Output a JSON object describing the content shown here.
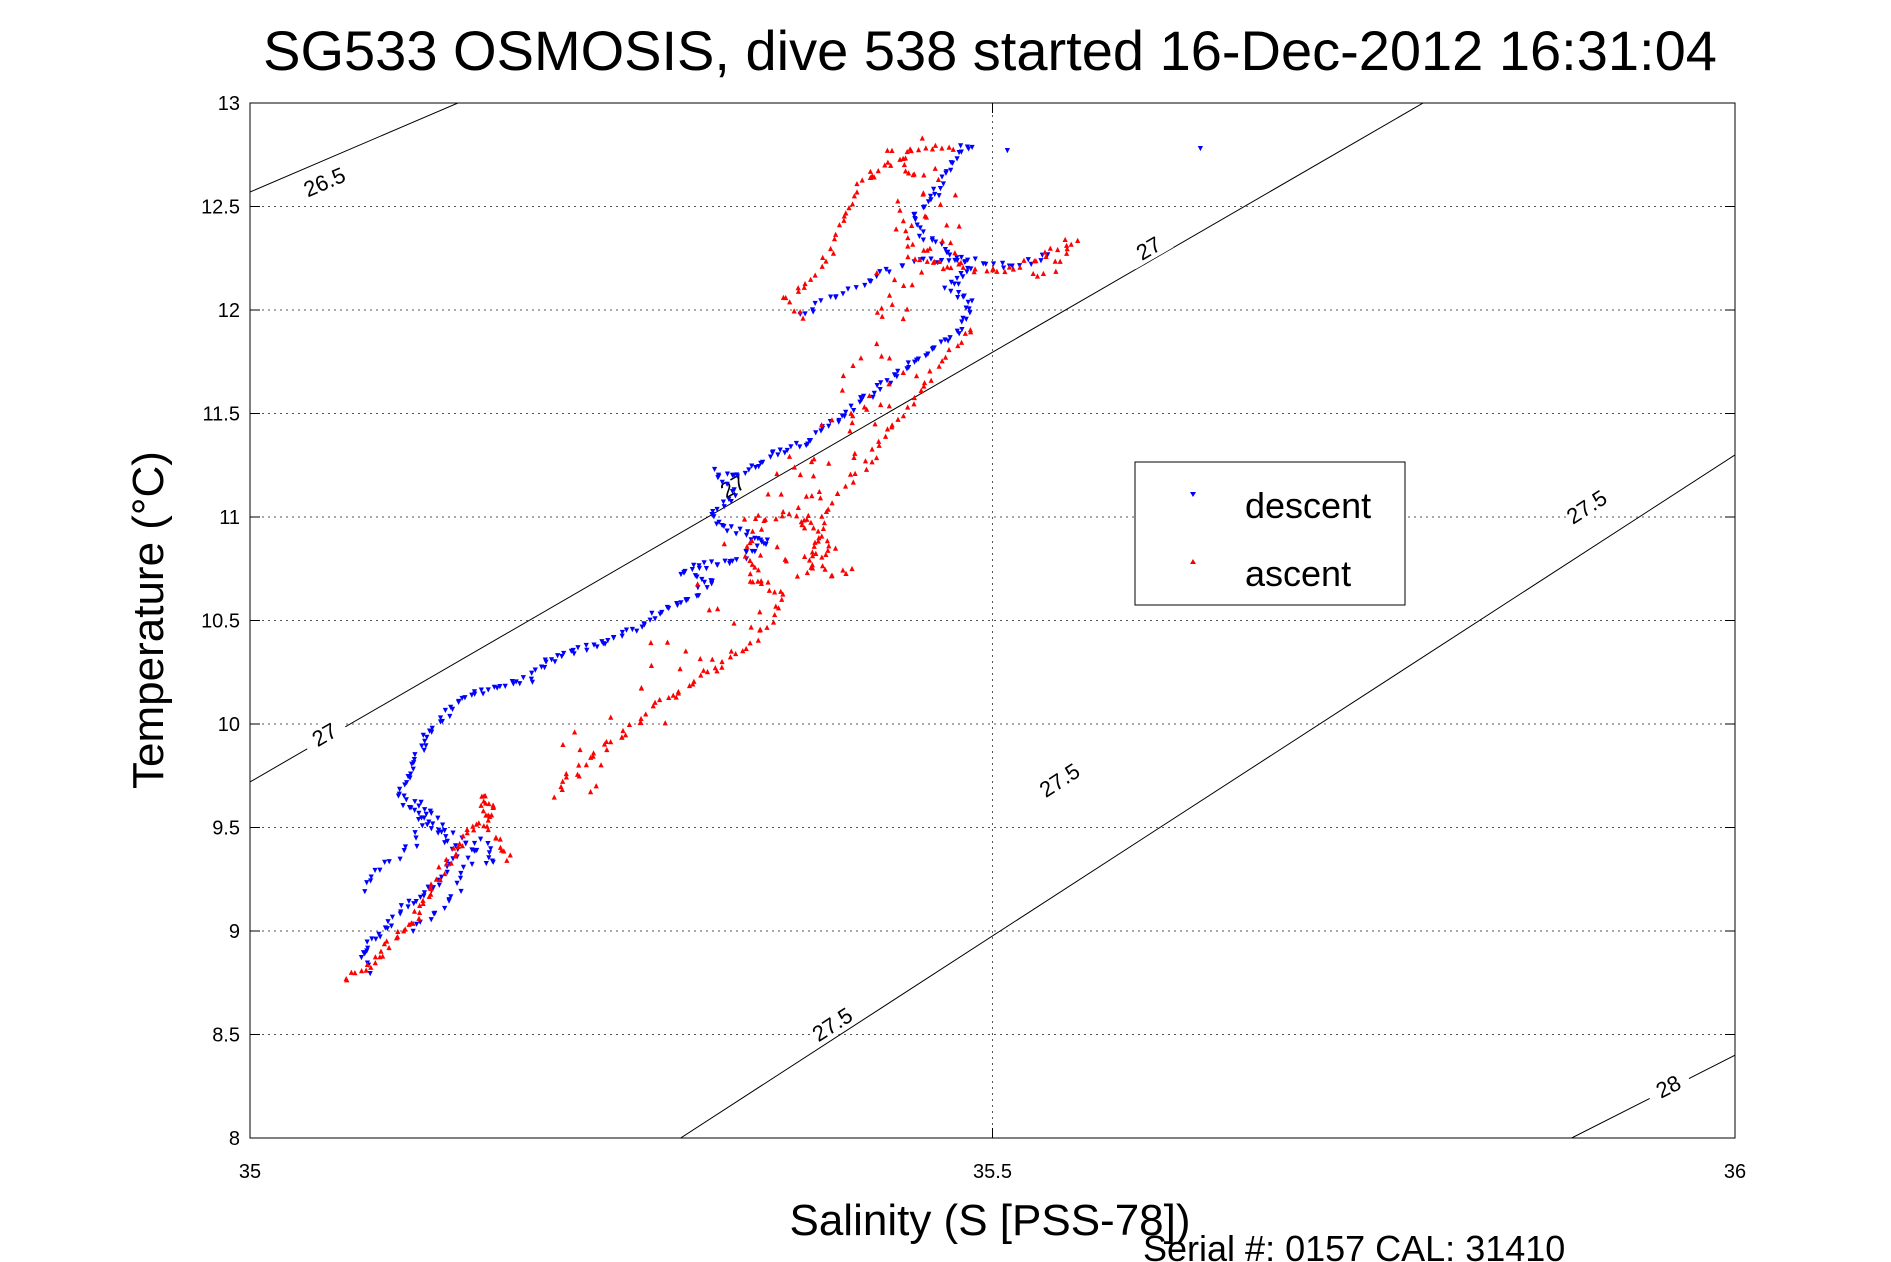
{
  "chart_data": {
    "type": "scatter",
    "title": "SG533 OSMOSIS, dive 538 started 16-Dec-2012 16:31:04",
    "xlabel": "Salinity (S [PSS-78])",
    "ylabel": "Temperature (°C)",
    "xlim": [
      35,
      36
    ],
    "ylim": [
      8,
      13
    ],
    "xticks": [
      35,
      35.5,
      36
    ],
    "xtick_labels": [
      "35",
      "35.5",
      "36"
    ],
    "yticks": [
      8,
      8.5,
      9,
      9.5,
      10,
      10.5,
      11,
      11.5,
      12,
      12.5,
      13
    ],
    "ytick_labels": [
      "8",
      "8.5",
      "9",
      "9.5",
      "10",
      "10.5",
      "11",
      "11.5",
      "12",
      "12.5",
      "13"
    ],
    "grid": true,
    "legend_position": "right",
    "footer": "Serial #: 0157  CAL: 31410",
    "density_contours": [
      {
        "label": "26.5",
        "points": [
          [
            35.0,
            12.57
          ],
          [
            35.14,
            13.0
          ]
        ]
      },
      {
        "label": "27",
        "points": [
          [
            35.0,
            9.72
          ],
          [
            35.79,
            13.0
          ]
        ]
      },
      {
        "label": "27.5",
        "points": [
          [
            35.29,
            8.0
          ],
          [
            36.0,
            11.3
          ]
        ]
      },
      {
        "label": "28",
        "points": [
          [
            35.89,
            8.0
          ],
          [
            36.0,
            8.4
          ]
        ]
      }
    ],
    "contour_labels": [
      {
        "text": "26.5",
        "x": 35.05,
        "y": 12.62
      },
      {
        "text": "27",
        "x": 35.05,
        "y": 9.95
      },
      {
        "text": "27",
        "x": 35.325,
        "y": 11.15
      },
      {
        "text": "27",
        "x": 35.605,
        "y": 12.3
      },
      {
        "text": "27.5",
        "x": 35.392,
        "y": 8.55
      },
      {
        "text": "27.5",
        "x": 35.545,
        "y": 9.73
      },
      {
        "text": "27.5",
        "x": 35.9,
        "y": 11.05
      },
      {
        "text": "28",
        "x": 35.955,
        "y": 8.25
      }
    ],
    "series": [
      {
        "name": "descent",
        "color": "#0000ff",
        "marker": "triangle-down",
        "path": [
          [
            35.08,
            8.8
          ],
          [
            35.075,
            8.9
          ],
          [
            35.09,
            9.0
          ],
          [
            35.1,
            9.1
          ],
          [
            35.125,
            9.22
          ],
          [
            35.14,
            9.38
          ],
          [
            35.12,
            9.52
          ],
          [
            35.1,
            9.65
          ],
          [
            35.11,
            9.8
          ],
          [
            35.12,
            9.95
          ],
          [
            35.13,
            10.03
          ],
          [
            35.15,
            10.15
          ],
          [
            35.19,
            10.22
          ],
          [
            35.2,
            10.3
          ],
          [
            35.24,
            10.4
          ],
          [
            35.26,
            10.46
          ],
          [
            35.28,
            10.55
          ],
          [
            35.3,
            10.62
          ],
          [
            35.31,
            10.68
          ],
          [
            35.29,
            10.74
          ],
          [
            35.33,
            10.8
          ],
          [
            35.35,
            10.88
          ],
          [
            35.32,
            10.95
          ],
          [
            35.31,
            11.0
          ],
          [
            35.325,
            11.1
          ],
          [
            35.315,
            11.22
          ],
          [
            35.33,
            11.2
          ],
          [
            35.35,
            11.3
          ],
          [
            35.38,
            11.38
          ],
          [
            35.4,
            11.5
          ],
          [
            35.42,
            11.6
          ],
          [
            35.44,
            11.72
          ],
          [
            35.47,
            11.85
          ],
          [
            35.48,
            11.95
          ],
          [
            35.485,
            12.03
          ],
          [
            35.47,
            12.1
          ],
          [
            35.485,
            12.2
          ],
          [
            35.47,
            12.28
          ],
          [
            35.455,
            12.35
          ],
          [
            35.445,
            12.45
          ],
          [
            35.46,
            12.55
          ],
          [
            35.47,
            12.65
          ],
          [
            35.475,
            12.72
          ],
          [
            35.48,
            12.79
          ],
          [
            35.49,
            12.78
          ]
        ],
        "path2": [
          [
            35.075,
            9.2
          ],
          [
            35.09,
            9.3
          ],
          [
            35.11,
            9.42
          ],
          [
            35.12,
            9.55
          ],
          [
            35.11,
            9.62
          ],
          [
            35.125,
            9.58
          ],
          [
            35.13,
            9.5
          ],
          [
            35.155,
            9.38
          ],
          [
            35.165,
            9.32
          ],
          [
            35.16,
            9.4
          ],
          [
            35.155,
            9.45
          ],
          [
            35.145,
            9.3
          ],
          [
            35.14,
            9.2
          ],
          [
            35.12,
            9.05
          ],
          [
            35.105,
            9.0
          ]
        ],
        "path3": [
          [
            35.37,
            11.97
          ],
          [
            35.39,
            12.05
          ],
          [
            35.42,
            12.15
          ],
          [
            35.44,
            12.22
          ],
          [
            35.47,
            12.25
          ],
          [
            35.5,
            12.22
          ],
          [
            35.52,
            12.2
          ],
          [
            35.53,
            12.25
          ],
          [
            35.54,
            12.28
          ]
        ],
        "outliers": [
          [
            35.51,
            12.77
          ],
          [
            35.64,
            12.78
          ]
        ]
      },
      {
        "name": "ascent",
        "color": "#ff0000",
        "marker": "triangle-up",
        "path": [
          [
            35.065,
            8.77
          ],
          [
            35.08,
            8.82
          ],
          [
            35.095,
            8.95
          ],
          [
            35.11,
            9.05
          ],
          [
            35.12,
            9.18
          ],
          [
            35.13,
            9.3
          ],
          [
            35.145,
            9.45
          ],
          [
            35.155,
            9.52
          ],
          [
            35.165,
            9.6
          ],
          [
            35.155,
            9.66
          ],
          [
            35.16,
            9.5
          ],
          [
            35.17,
            9.4
          ],
          [
            35.175,
            9.33
          ]
        ],
        "path2": [
          [
            35.205,
            9.65
          ],
          [
            35.215,
            9.75
          ],
          [
            35.23,
            9.85
          ],
          [
            35.245,
            9.92
          ],
          [
            35.26,
            10.0
          ],
          [
            35.275,
            10.1
          ],
          [
            35.29,
            10.16
          ],
          [
            35.3,
            10.22
          ],
          [
            35.32,
            10.3
          ],
          [
            35.34,
            10.42
          ],
          [
            35.35,
            10.5
          ],
          [
            35.36,
            10.62
          ],
          [
            35.34,
            10.7
          ],
          [
            35.335,
            10.8
          ],
          [
            35.34,
            10.9
          ],
          [
            35.345,
            11.0
          ],
          [
            35.37,
            11.02
          ],
          [
            35.38,
            10.95
          ],
          [
            35.395,
            10.85
          ],
          [
            35.375,
            10.8
          ],
          [
            35.39,
            10.72
          ],
          [
            35.4,
            10.74
          ],
          [
            35.405,
            10.77
          ]
        ],
        "path3": [
          [
            35.37,
            10.7
          ],
          [
            35.38,
            10.8
          ],
          [
            35.385,
            10.95
          ],
          [
            35.39,
            11.05
          ],
          [
            35.4,
            11.15
          ],
          [
            35.41,
            11.22
          ],
          [
            35.42,
            11.3
          ],
          [
            35.425,
            11.4
          ],
          [
            35.435,
            11.48
          ],
          [
            35.445,
            11.55
          ],
          [
            35.455,
            11.65
          ],
          [
            35.465,
            11.75
          ],
          [
            35.475,
            11.82
          ],
          [
            35.48,
            11.88
          ],
          [
            35.49,
            11.93
          ]
        ],
        "path4": [
          [
            35.37,
            11.97
          ],
          [
            35.36,
            12.05
          ],
          [
            35.38,
            12.15
          ],
          [
            35.39,
            12.28
          ],
          [
            35.395,
            12.4
          ],
          [
            35.405,
            12.52
          ],
          [
            35.41,
            12.6
          ],
          [
            35.425,
            12.68
          ],
          [
            35.44,
            12.74
          ],
          [
            35.45,
            12.78
          ],
          [
            35.46,
            12.8
          ],
          [
            35.47,
            12.79
          ],
          [
            35.48,
            12.78
          ]
        ],
        "path5": [
          [
            35.445,
            12.25
          ],
          [
            35.47,
            12.22
          ],
          [
            35.49,
            12.2
          ],
          [
            35.505,
            12.18
          ],
          [
            35.52,
            12.22
          ],
          [
            35.53,
            12.25
          ],
          [
            35.545,
            12.3
          ],
          [
            35.555,
            12.35
          ],
          [
            35.54,
            12.2
          ],
          [
            35.525,
            12.15
          ]
        ]
      }
    ]
  }
}
